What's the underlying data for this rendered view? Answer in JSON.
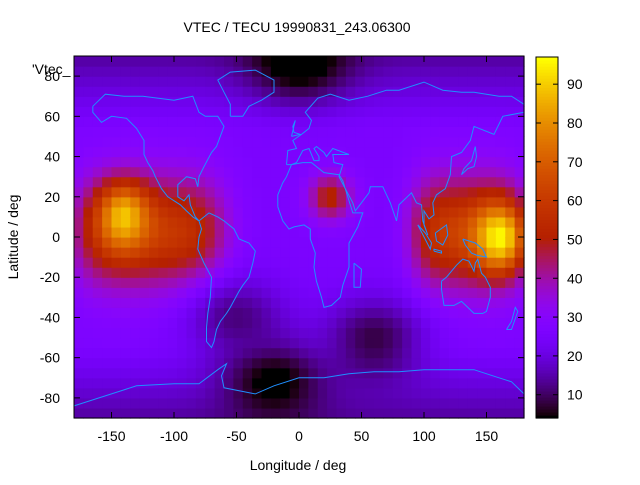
{
  "chart_data": {
    "type": "heatmap",
    "title": "VTEC / TECU 19990831_243.06300",
    "xlabel": "Longitude / deg",
    "ylabel": "Latitude / deg",
    "key_label": "'Vtec_",
    "xlim": [
      -180,
      180
    ],
    "ylim": [
      -90,
      90
    ],
    "x_ticks": [
      -150,
      -100,
      -50,
      0,
      50,
      100,
      150
    ],
    "y_ticks": [
      -80,
      -60,
      -40,
      -20,
      0,
      20,
      40,
      60,
      80
    ],
    "colorbar": {
      "range": [
        4,
        97
      ],
      "ticks": [
        10,
        20,
        30,
        40,
        50,
        60,
        70,
        80,
        90
      ],
      "palette": "gnuplot-rgbformulae-7-5-15"
    },
    "overlay": "coastlines",
    "grid": false,
    "features": [
      {
        "type": "peak",
        "lon": -140,
        "lat": 10,
        "value": 90
      },
      {
        "type": "peak",
        "lon": 160,
        "lat": 0,
        "value": 97
      },
      {
        "type": "band",
        "lon_range": [
          -180,
          -60
        ],
        "lat_range": [
          -25,
          30
        ],
        "value": 60
      },
      {
        "type": "band",
        "lon_range": [
          90,
          180
        ],
        "lat_range": [
          -25,
          30
        ],
        "value": 62
      },
      {
        "type": "min",
        "lon": 60,
        "lat": -50,
        "value": 6
      },
      {
        "type": "min",
        "lon": -20,
        "lat": -68,
        "value": 5
      },
      {
        "type": "min",
        "lon": -50,
        "lat": -40,
        "value": 10
      },
      {
        "type": "min",
        "lon": 0,
        "lat": 85,
        "value": 8
      },
      {
        "type": "local",
        "lon": 25,
        "lat": 20,
        "value": 52
      }
    ]
  },
  "colors": {
    "coastline": "#1f8fff",
    "axis": "#000000",
    "background": "#ffffff"
  }
}
